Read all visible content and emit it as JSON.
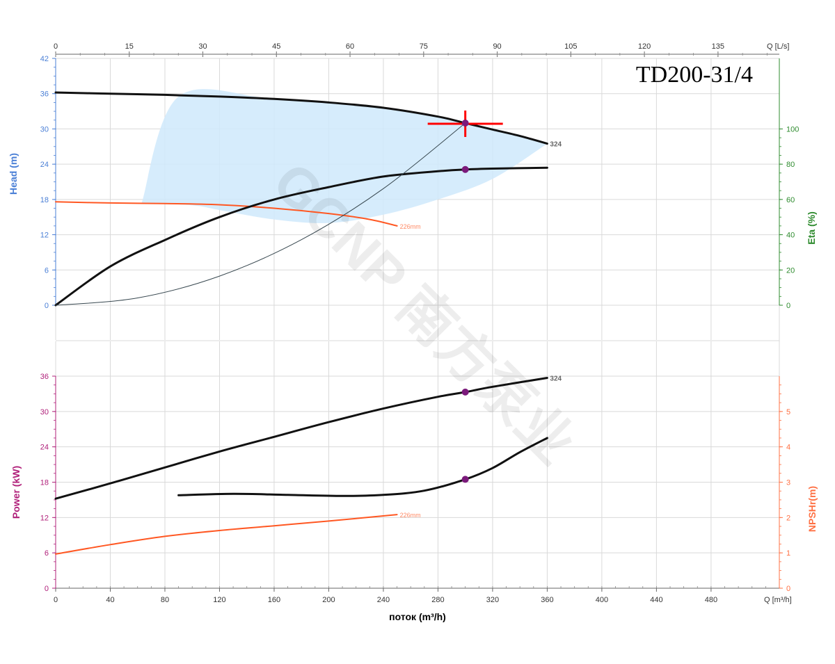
{
  "model_title": "TD200-31/4",
  "watermark": "GCNP 南方泵业",
  "colors": {
    "grid": "#d9d9d9",
    "head_axis": "#4a7fd6",
    "eta_axis": "#2e8b2e",
    "power_axis": "#b0207a",
    "npsh_axis": "#ff7043",
    "curve": "#111111",
    "curve_small": "#ff5722",
    "system": "#37474f",
    "region_fill": "#cfe9fb",
    "operating_cross": "#ff0000",
    "operating_dot": "#7b1a7b"
  },
  "chart_data": [
    {
      "type": "line",
      "panel": "head_eta",
      "ylabel_left": "Head (m)",
      "ylabel_right": "Eta (%)",
      "top_axis": {
        "label": "Q [L/s]",
        "ticks": [
          "0",
          "15",
          "30",
          "45",
          "60",
          "75",
          "90",
          "105",
          "120",
          "135"
        ],
        "xlim": [
          0,
          147.5
        ]
      },
      "xlim": [
        0,
        530
      ],
      "ylim_left": [
        0,
        42
      ],
      "yticks_left": [
        "0",
        "6",
        "12",
        "18",
        "24",
        "30",
        "36",
        "42"
      ],
      "ylim_right": [
        0,
        140
      ],
      "yticks_right": [
        "0",
        "20",
        "40",
        "60",
        "80",
        "100"
      ],
      "grid": true,
      "operating_point": {
        "q": 300,
        "head": 31
      },
      "operating_range_region": {
        "upper": [
          [
            63,
            17.4
          ],
          [
            90,
            35.5
          ],
          [
            160,
            35.1
          ],
          [
            240,
            33.6
          ],
          [
            300,
            31.0
          ],
          [
            360,
            27.5
          ]
        ],
        "lower": [
          [
            360,
            27.5
          ],
          [
            320,
            21.5
          ],
          [
            280,
            18.0
          ],
          [
            240,
            15.4
          ],
          [
            200,
            14.0
          ],
          [
            160,
            14.6
          ],
          [
            120,
            16.2
          ],
          [
            100,
            17.0
          ],
          [
            63,
            17.4
          ]
        ]
      },
      "series": [
        {
          "name": "324",
          "role": "head",
          "axis": "left",
          "points": [
            [
              0,
              36.2
            ],
            [
              40,
              36.0
            ],
            [
              80,
              35.8
            ],
            [
              120,
              35.5
            ],
            [
              160,
              35.1
            ],
            [
              200,
              34.5
            ],
            [
              240,
              33.6
            ],
            [
              280,
              32.1
            ],
            [
              300,
              31.0
            ],
            [
              320,
              29.9
            ],
            [
              340,
              28.8
            ],
            [
              360,
              27.5
            ]
          ]
        },
        {
          "name": "226mm",
          "role": "head",
          "axis": "left",
          "points": [
            [
              0,
              17.6
            ],
            [
              40,
              17.4
            ],
            [
              80,
              17.3
            ],
            [
              120,
              17.1
            ],
            [
              160,
              16.5
            ],
            [
              200,
              15.6
            ],
            [
              230,
              14.6
            ],
            [
              250,
              13.5
            ]
          ]
        },
        {
          "role": "efficiency",
          "axis": "right",
          "points": [
            [
              0,
              0
            ],
            [
              40,
              22
            ],
            [
              80,
              37
            ],
            [
              120,
              50
            ],
            [
              160,
              60
            ],
            [
              200,
              67
            ],
            [
              240,
              73
            ],
            [
              280,
              76
            ],
            [
              300,
              77
            ],
            [
              320,
              77.5
            ],
            [
              360,
              78
            ]
          ],
          "marker": [
            300,
            77
          ]
        },
        {
          "role": "system_curve",
          "axis": "left",
          "points": [
            [
              0,
              0
            ],
            [
              60,
              1.24
            ],
            [
              120,
              4.96
            ],
            [
              180,
              11.16
            ],
            [
              240,
              19.84
            ],
            [
              300,
              31.0
            ]
          ]
        }
      ]
    },
    {
      "type": "line",
      "panel": "power_npsh",
      "xlabel": "поток (m³/h)",
      "bottom_axis": {
        "label": "Q [m³/h]",
        "ticks": [
          "0",
          "40",
          "80",
          "120",
          "160",
          "200",
          "240",
          "280",
          "320",
          "360",
          "400",
          "440",
          "480"
        ]
      },
      "xlim": [
        0,
        530
      ],
      "ylabel_left": "Power (kW)",
      "ylabel_right": "NPSHr(m)",
      "ylim_left": [
        0,
        36
      ],
      "yticks_left": [
        "0",
        "6",
        "12",
        "18",
        "24",
        "30",
        "36"
      ],
      "ylim_right": [
        0,
        6
      ],
      "yticks_right": [
        "0",
        "1",
        "2",
        "3",
        "4",
        "5"
      ],
      "grid": true,
      "series": [
        {
          "name": "324",
          "role": "power",
          "axis": "left",
          "points": [
            [
              0,
              15.2
            ],
            [
              40,
              17.8
            ],
            [
              80,
              20.5
            ],
            [
              120,
              23.2
            ],
            [
              160,
              25.7
            ],
            [
              200,
              28.2
            ],
            [
              240,
              30.5
            ],
            [
              280,
              32.5
            ],
            [
              300,
              33.3
            ],
            [
              320,
              34.2
            ],
            [
              360,
              35.7
            ]
          ],
          "marker": [
            300,
            33.3
          ]
        },
        {
          "name": "226mm",
          "role": "power",
          "axis": "left",
          "points": [
            [
              0,
              5.8
            ],
            [
              40,
              7.4
            ],
            [
              80,
              8.8
            ],
            [
              120,
              9.8
            ],
            [
              160,
              10.6
            ],
            [
              200,
              11.4
            ],
            [
              250,
              12.5
            ]
          ]
        },
        {
          "role": "npshr",
          "axis": "right",
          "points": [
            [
              90,
              2.63
            ],
            [
              130,
              2.67
            ],
            [
              170,
              2.64
            ],
            [
              210,
              2.61
            ],
            [
              240,
              2.64
            ],
            [
              270,
              2.76
            ],
            [
              300,
              3.08
            ],
            [
              320,
              3.4
            ],
            [
              340,
              3.85
            ],
            [
              360,
              4.25
            ]
          ],
          "marker": [
            300,
            3.08
          ]
        }
      ]
    }
  ]
}
